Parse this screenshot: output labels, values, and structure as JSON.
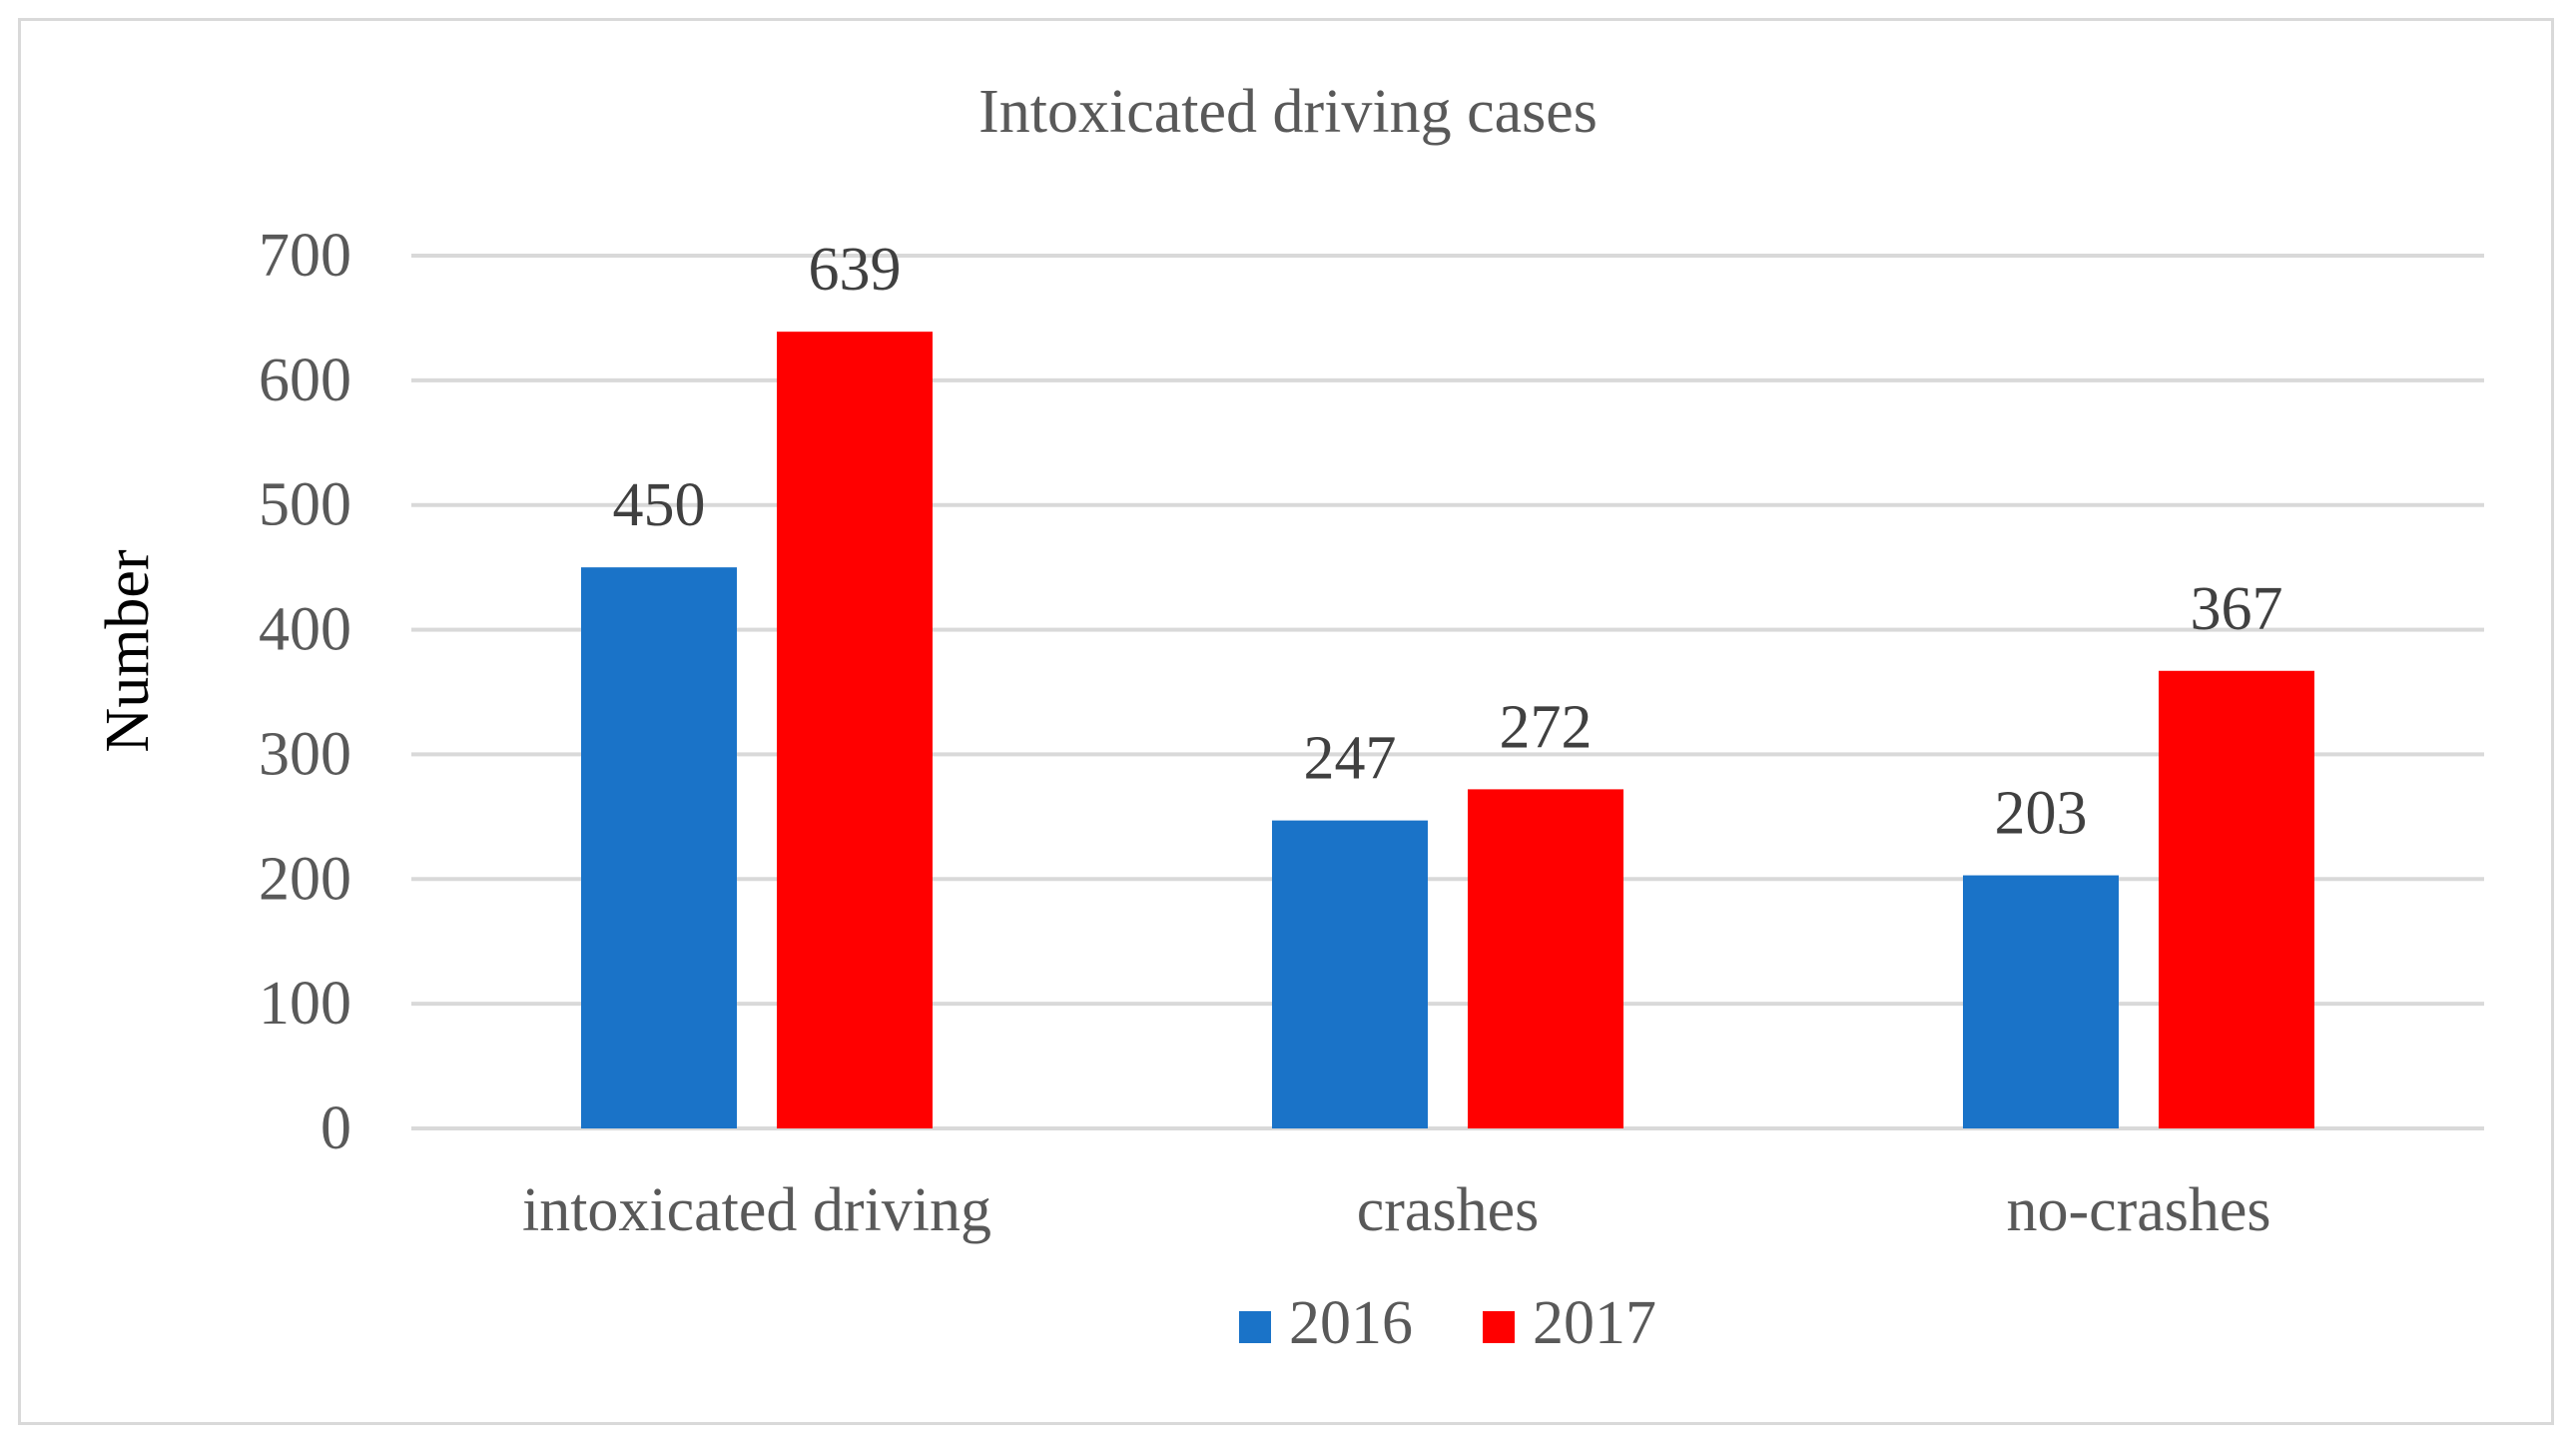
{
  "chart_data": {
    "type": "bar",
    "title": "Intoxicated driving cases",
    "ylabel": "Number",
    "xlabel": "",
    "categories": [
      "intoxicated driving",
      "crashes",
      "no-crashes"
    ],
    "series": [
      {
        "name": "2016",
        "values": [
          450,
          247,
          203
        ],
        "color": "#1a73c8"
      },
      {
        "name": "2017",
        "values": [
          639,
          272,
          367
        ],
        "color": "#ff0000"
      }
    ],
    "ylim": [
      0,
      700
    ],
    "yticks": [
      0,
      100,
      200,
      300,
      400,
      500,
      600,
      700
    ],
    "grid": true,
    "legend": "bottom-center",
    "data_labels": true
  }
}
